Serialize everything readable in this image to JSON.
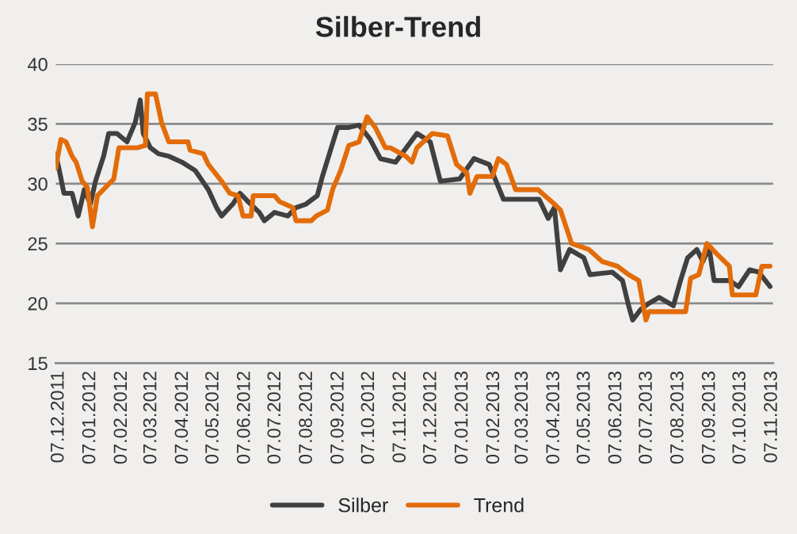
{
  "chart_data": {
    "type": "line",
    "title": "Silber-Trend",
    "xlim": [
      "2011-12-04",
      "2013-11-08"
    ],
    "xticks": [
      {
        "value": "2011-12-07",
        "label": "07.12.2011"
      },
      {
        "value": "2012-01-07",
        "label": "07.01.2012"
      },
      {
        "value": "2012-02-07",
        "label": "07.02.2012"
      },
      {
        "value": "2012-03-07",
        "label": "07.03.2012"
      },
      {
        "value": "2012-04-07",
        "label": "07.04.2012"
      },
      {
        "value": "2012-05-07",
        "label": "07.05.2012"
      },
      {
        "value": "2012-06-07",
        "label": "07.06.2012"
      },
      {
        "value": "2012-07-07",
        "label": "07.07.2012"
      },
      {
        "value": "2012-08-07",
        "label": "07.08.2012"
      },
      {
        "value": "2012-09-07",
        "label": "07.09.2012"
      },
      {
        "value": "2012-10-07",
        "label": "07.10.2012"
      },
      {
        "value": "2012-11-07",
        "label": "07.11.2012"
      },
      {
        "value": "2012-12-07",
        "label": "07.12.2012"
      },
      {
        "value": "2013-01-07",
        "label": "07.01.2013"
      },
      {
        "value": "2013-02-07",
        "label": "07.02.2013"
      },
      {
        "value": "2013-03-07",
        "label": "07.03.2013"
      },
      {
        "value": "2013-04-07",
        "label": "07.04.2013"
      },
      {
        "value": "2013-05-07",
        "label": "07.05.2013"
      },
      {
        "value": "2013-06-07",
        "label": "07.06.2013"
      },
      {
        "value": "2013-07-07",
        "label": "07.07.2013"
      },
      {
        "value": "2013-08-07",
        "label": "07.08.2013"
      },
      {
        "value": "2013-09-07",
        "label": "07.09.2013"
      },
      {
        "value": "2013-10-07",
        "label": "07.10.2013"
      },
      {
        "value": "2013-11-07",
        "label": "07.11.2013"
      }
    ],
    "ylim": [
      15,
      40
    ],
    "yticks": [
      15,
      20,
      25,
      30,
      35,
      40
    ],
    "grid": "y",
    "legend": "bottom",
    "line_style": "solid",
    "marker": "none",
    "series": [
      {
        "name": "Silber",
        "color": "#404040",
        "x": [
          "2011-12-04",
          "2011-12-08",
          "2011-12-12",
          "2011-12-20",
          "2011-12-26",
          "2012-01-01",
          "2012-01-07",
          "2012-01-12",
          "2012-01-20",
          "2012-01-25",
          "2012-02-02",
          "2012-02-12",
          "2012-02-20",
          "2012-02-25",
          "2012-02-28",
          "2012-03-06",
          "2012-03-14",
          "2012-03-24",
          "2012-04-06",
          "2012-04-19",
          "2012-05-02",
          "2012-05-10",
          "2012-05-15",
          "2012-05-26",
          "2012-06-02",
          "2012-06-10",
          "2012-06-21",
          "2012-06-26",
          "2012-07-06",
          "2012-07-19",
          "2012-07-27",
          "2012-08-06",
          "2012-08-17",
          "2012-08-22",
          "2012-08-30",
          "2012-09-06",
          "2012-09-17",
          "2012-09-27",
          "2012-10-08",
          "2012-10-18",
          "2012-11-02",
          "2012-11-23",
          "2012-12-06",
          "2012-12-16",
          "2013-01-04",
          "2013-01-18",
          "2013-02-02",
          "2013-02-16",
          "2013-03-23",
          "2013-04-01",
          "2013-04-07",
          "2013-04-13",
          "2013-04-22",
          "2013-05-06",
          "2013-05-12",
          "2013-06-03",
          "2013-06-13",
          "2013-06-19",
          "2013-06-23",
          "2013-07-01",
          "2013-07-09",
          "2013-07-19",
          "2013-08-02",
          "2013-08-09",
          "2013-08-16",
          "2013-08-25",
          "2013-08-31",
          "2013-09-06",
          "2013-09-11",
          "2013-09-26",
          "2013-10-05",
          "2013-10-16",
          "2013-10-25",
          "2013-11-05"
        ],
        "values": [
          32.5,
          30.9,
          29.2,
          29.2,
          27.3,
          29.5,
          28.3,
          30.2,
          32.3,
          34.2,
          34.2,
          33.5,
          35.1,
          37.0,
          34.2,
          33.0,
          32.5,
          32.3,
          31.8,
          31.1,
          29.5,
          28.0,
          27.3,
          28.3,
          29.2,
          28.5,
          27.6,
          26.9,
          27.6,
          27.3,
          28.0,
          28.3,
          29.0,
          30.6,
          32.8,
          34.7,
          34.7,
          34.9,
          33.7,
          32.1,
          31.8,
          34.2,
          33.5,
          30.2,
          30.4,
          32.1,
          31.6,
          28.7,
          28.7,
          27.1,
          28.0,
          22.8,
          24.5,
          23.8,
          22.4,
          22.6,
          21.9,
          19.8,
          18.6,
          19.5,
          20.0,
          20.5,
          19.8,
          21.9,
          23.8,
          24.5,
          23.5,
          24.7,
          21.9,
          21.9,
          21.4,
          22.8,
          22.6,
          21.4
        ]
      },
      {
        "name": "Trend",
        "color": "#e36c0a",
        "x": [
          "2011-12-04",
          "2011-12-09",
          "2011-12-14",
          "2011-12-20",
          "2011-12-24",
          "2011-12-30",
          "2012-01-04",
          "2012-01-09",
          "2012-01-14",
          "2012-01-22",
          "2012-01-30",
          "2012-02-04",
          "2012-02-22",
          "2012-03-01",
          "2012-03-03",
          "2012-03-11",
          "2012-03-17",
          "2012-03-24",
          "2012-04-12",
          "2012-04-14",
          "2012-04-27",
          "2012-05-02",
          "2012-05-15",
          "2012-05-23",
          "2012-05-31",
          "2012-06-05",
          "2012-06-13",
          "2012-06-15",
          "2012-07-06",
          "2012-07-11",
          "2012-07-24",
          "2012-07-27",
          "2012-08-11",
          "2012-08-16",
          "2012-08-27",
          "2012-09-01",
          "2012-09-09",
          "2012-09-17",
          "2012-09-27",
          "2012-10-05",
          "2012-10-13",
          "2012-10-23",
          "2012-10-28",
          "2012-11-12",
          "2012-11-18",
          "2012-11-23",
          "2012-12-08",
          "2012-12-23",
          "2013-01-01",
          "2013-01-11",
          "2013-01-14",
          "2013-01-21",
          "2013-02-05",
          "2013-02-11",
          "2013-02-19",
          "2013-02-28",
          "2013-03-22",
          "2013-03-26",
          "2013-04-07",
          "2013-04-13",
          "2013-04-24",
          "2013-05-11",
          "2013-05-24",
          "2013-06-08",
          "2013-06-19",
          "2013-06-29",
          "2013-07-06",
          "2013-07-09",
          "2013-08-05",
          "2013-08-14",
          "2013-08-19",
          "2013-08-27",
          "2013-09-04",
          "2013-09-14",
          "2013-09-26",
          "2013-09-29",
          "2013-10-22",
          "2013-10-28",
          "2013-11-05"
        ],
        "values": [
          31.3,
          33.7,
          33.5,
          32.3,
          31.8,
          30.2,
          29.7,
          26.4,
          29.0,
          29.7,
          30.4,
          33.0,
          33.0,
          33.2,
          37.5,
          37.5,
          35.1,
          33.5,
          33.5,
          32.8,
          32.5,
          31.6,
          30.2,
          29.2,
          29.0,
          27.3,
          27.3,
          29.0,
          29.0,
          28.5,
          28.0,
          26.9,
          26.9,
          27.3,
          27.8,
          29.5,
          31.1,
          33.2,
          33.5,
          35.6,
          34.7,
          33.0,
          33.0,
          32.3,
          31.8,
          33.0,
          34.2,
          34.0,
          31.6,
          30.9,
          29.2,
          30.6,
          30.6,
          32.1,
          31.6,
          29.5,
          29.5,
          29.2,
          28.3,
          27.8,
          25.0,
          24.5,
          23.5,
          23.1,
          22.4,
          21.9,
          18.6,
          19.3,
          19.3,
          19.3,
          22.1,
          22.4,
          25.0,
          24.1,
          23.1,
          20.7,
          20.7,
          23.1,
          23.1
        ]
      }
    ]
  }
}
